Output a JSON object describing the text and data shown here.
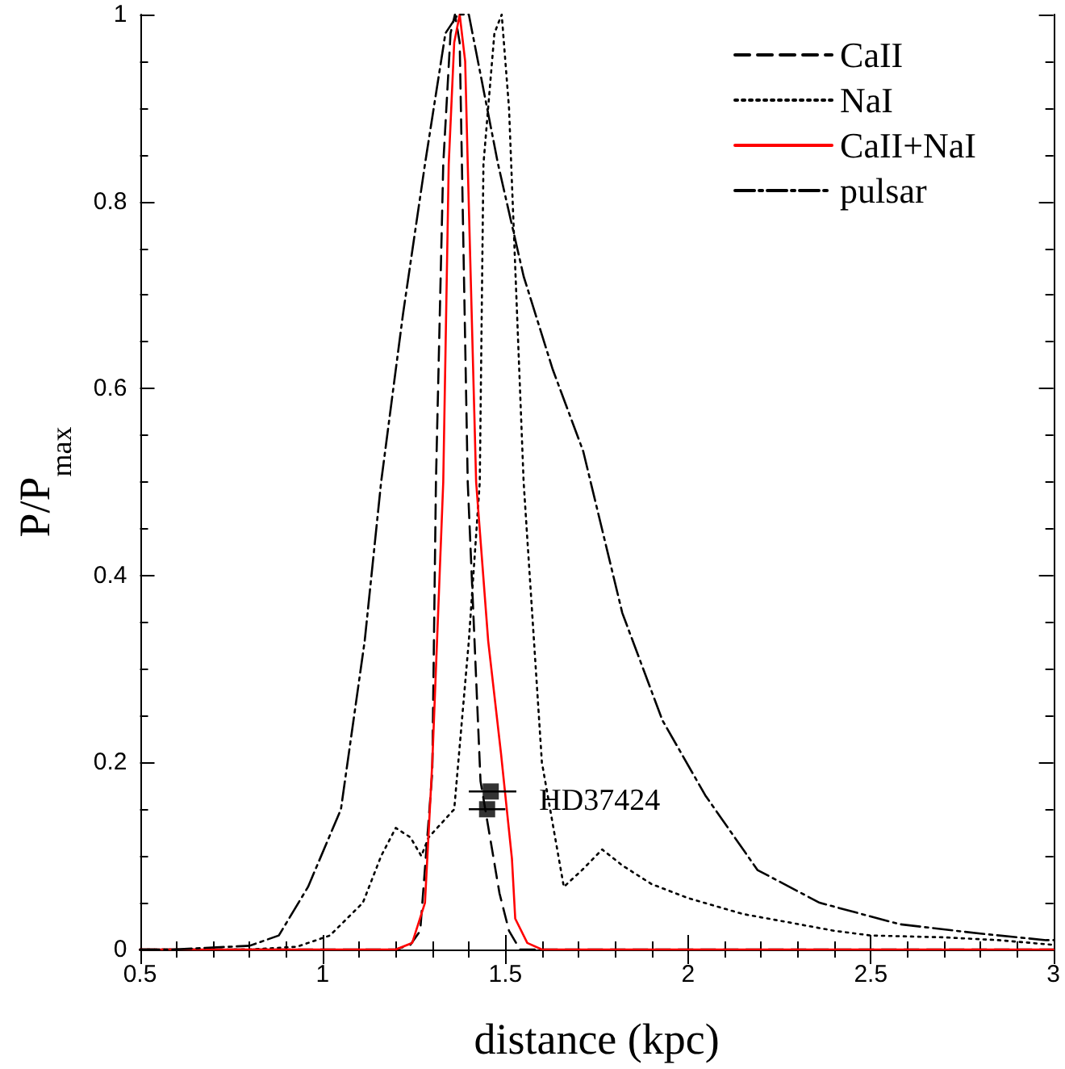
{
  "chart_data": {
    "type": "line",
    "xlabel": "distance (kpc)",
    "ylabel": "P/P$_{max}$",
    "xlim": [
      0.5,
      3
    ],
    "xticks": [
      0.5,
      1,
      1.5,
      2,
      2.5,
      3
    ],
    "ylim": [
      0,
      1
    ],
    "yticks": [
      0,
      0.2,
      0.4,
      0.6,
      0.8,
      1
    ],
    "grid": false,
    "legend": "top right",
    "marker": "none",
    "series": [
      {
        "name": "CaII",
        "color": "#000000",
        "line_style": "dashed",
        "x": [
          0.5,
          1.2,
          1.24,
          1.267,
          1.3,
          1.31,
          1.33,
          1.35,
          1.362,
          1.375,
          1.397,
          1.432,
          1.484,
          1.51,
          1.54,
          1.6,
          3
        ],
        "values": [
          0,
          0,
          0.005,
          0.02,
          0.19,
          0.5,
          0.84,
          0.98,
          1.0,
          0.97,
          0.5,
          0.18,
          0.06,
          0.02,
          0,
          0,
          0
        ]
      },
      {
        "name": "NaI",
        "color": "#000000",
        "line_style": "dotted",
        "x": [
          0.5,
          0.8,
          0.93,
          1.02,
          1.11,
          1.16,
          1.2,
          1.24,
          1.27,
          1.29,
          1.36,
          1.4,
          1.43,
          1.44,
          1.47,
          1.49,
          1.51,
          1.53,
          1.55,
          1.6,
          1.66,
          1.71,
          1.765,
          1.82,
          1.9,
          2.0,
          2.15,
          2.29,
          2.4,
          2.5,
          2.7,
          2.85,
          3
        ],
        "values": [
          0,
          0,
          0.003,
          0.015,
          0.05,
          0.1,
          0.13,
          0.12,
          0.1,
          0.12,
          0.15,
          0.33,
          0.5,
          0.84,
          0.98,
          1.0,
          0.9,
          0.7,
          0.5,
          0.2,
          0.067,
          0.085,
          0.107,
          0.09,
          0.07,
          0.055,
          0.038,
          0.028,
          0.02,
          0.015,
          0.013,
          0.01,
          0.005
        ]
      },
      {
        "name": "CaII+NaI",
        "color": "#ff0000",
        "line_style": "solid",
        "x": [
          0.5,
          1.2,
          1.245,
          1.28,
          1.3,
          1.33,
          1.345,
          1.36,
          1.375,
          1.39,
          1.397,
          1.42,
          1.453,
          1.488,
          1.518,
          1.527,
          1.56,
          1.6,
          3
        ],
        "values": [
          0,
          0,
          0.007,
          0.05,
          0.2,
          0.5,
          0.84,
          0.97,
          1.0,
          0.95,
          0.84,
          0.5,
          0.33,
          0.21,
          0.097,
          0.033,
          0.007,
          0,
          0
        ]
      },
      {
        "name": "pulsar",
        "color": "#000000",
        "line_style": "dashdot",
        "x": [
          0.5,
          0.59,
          0.8,
          0.88,
          0.96,
          1.05,
          1.115,
          1.16,
          1.22,
          1.28,
          1.336,
          1.37,
          1.4,
          1.42,
          1.48,
          1.55,
          1.63,
          1.713,
          1.82,
          1.93,
          2.047,
          2.19,
          2.36,
          2.58,
          2.8,
          2.98,
          3
        ],
        "values": [
          0,
          0,
          0.004,
          0.015,
          0.067,
          0.15,
          0.33,
          0.5,
          0.68,
          0.84,
          0.98,
          1.0,
          1.0,
          0.96,
          0.84,
          0.72,
          0.62,
          0.533,
          0.36,
          0.245,
          0.165,
          0.085,
          0.05,
          0.027,
          0.017,
          0.01,
          0.01
        ]
      },
      {
        "type": "scatter",
        "marker": "square",
        "color": "#000000",
        "x": [
          1.46,
          1.45
        ],
        "values": [
          0.169,
          0.15
        ],
        "xerrors": [
          [
            1.4,
            1.53
          ],
          [
            1.4,
            1.5
          ]
        ]
      }
    ],
    "annotations": [
      {
        "text": "HD37424",
        "x": 1.46,
        "y": 0.169
      }
    ]
  }
}
